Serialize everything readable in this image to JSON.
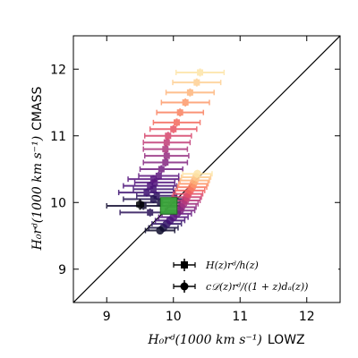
{
  "chart_data": {
    "type": "scatter",
    "title": "",
    "xlabel_math": "H₀rᵈ(1000 km s⁻¹)",
    "xlabel_suffix": "LOWZ",
    "ylabel_math": "H₀rᵈ(1000 km s⁻¹)",
    "ylabel_suffix": "CMASS",
    "xlim": [
      8.5,
      12.5
    ],
    "ylim": [
      8.5,
      12.5
    ],
    "xticks": [
      "9",
      "10",
      "11",
      "12"
    ],
    "yticks": [
      "9",
      "10",
      "11",
      "12"
    ],
    "grid": false,
    "diagonal": true,
    "colormap_note": "points colored from dark purple to light yellow",
    "series": [
      {
        "name": "H(z)r_d/h(z)",
        "marker": "square",
        "points": [
          {
            "x": 9.8,
            "y": 10.0,
            "xerr": 0.3,
            "yerr": 0.06,
            "color": "#1c1044"
          },
          {
            "x": 9.75,
            "y": 10.1,
            "xerr": 0.3,
            "yerr": 0.06,
            "color": "#2d1160"
          },
          {
            "x": 9.7,
            "y": 10.2,
            "xerr": 0.3,
            "yerr": 0.06,
            "color": "#3d0f6e"
          },
          {
            "x": 9.72,
            "y": 10.3,
            "xerr": 0.3,
            "yerr": 0.06,
            "color": "#51127c"
          },
          {
            "x": 9.78,
            "y": 10.4,
            "xerr": 0.3,
            "yerr": 0.06,
            "color": "#5f187f"
          },
          {
            "x": 9.82,
            "y": 10.5,
            "xerr": 0.32,
            "yerr": 0.06,
            "color": "#721f81"
          },
          {
            "x": 9.88,
            "y": 10.6,
            "xerr": 0.33,
            "yerr": 0.06,
            "color": "#832681"
          },
          {
            "x": 9.9,
            "y": 10.7,
            "xerr": 0.33,
            "yerr": 0.06,
            "color": "#952c80"
          },
          {
            "x": 9.88,
            "y": 10.8,
            "xerr": 0.33,
            "yerr": 0.06,
            "color": "#ab337c"
          },
          {
            "x": 9.9,
            "y": 10.9,
            "xerr": 0.35,
            "yerr": 0.06,
            "color": "#c03a76"
          },
          {
            "x": 9.92,
            "y": 11.0,
            "xerr": 0.35,
            "yerr": 0.06,
            "color": "#d6456c"
          },
          {
            "x": 10.0,
            "y": 11.1,
            "xerr": 0.35,
            "yerr": 0.06,
            "color": "#e85362"
          },
          {
            "x": 10.05,
            "y": 11.2,
            "xerr": 0.35,
            "yerr": 0.06,
            "color": "#f4695c"
          },
          {
            "x": 10.1,
            "y": 11.35,
            "xerr": 0.35,
            "yerr": 0.06,
            "color": "#fa815f"
          },
          {
            "x": 10.18,
            "y": 11.5,
            "xerr": 0.36,
            "yerr": 0.06,
            "color": "#fd9a6a"
          },
          {
            "x": 10.25,
            "y": 11.65,
            "xerr": 0.36,
            "yerr": 0.06,
            "color": "#feb47b"
          },
          {
            "x": 10.35,
            "y": 11.8,
            "xerr": 0.36,
            "yerr": 0.06,
            "color": "#fecf92"
          },
          {
            "x": 10.4,
            "y": 11.95,
            "xerr": 0.36,
            "yerr": 0.06,
            "color": "#fde4a7"
          },
          {
            "x": 9.55,
            "y": 9.95,
            "xerr": 0.55,
            "yerr": 0.06,
            "color": "#120d31"
          },
          {
            "x": 9.7,
            "y": 10.05,
            "xerr": 0.45,
            "yerr": 0.06,
            "color": "#221150"
          },
          {
            "x": 9.65,
            "y": 9.85,
            "xerr": 0.45,
            "yerr": 0.06,
            "color": "#2a1158"
          },
          {
            "x": 9.6,
            "y": 10.15,
            "xerr": 0.42,
            "yerr": 0.06,
            "color": "#3b0f70"
          },
          {
            "x": 9.65,
            "y": 10.25,
            "xerr": 0.4,
            "yerr": 0.06,
            "color": "#4a1079"
          },
          {
            "x": 9.7,
            "y": 10.35,
            "xerr": 0.38,
            "yerr": 0.06,
            "color": "#58157e"
          }
        ]
      },
      {
        "name": "cD(z)r_d/((1+z)d_A(z))",
        "marker": "circle",
        "points": [
          {
            "x": 9.5,
            "y": 9.97,
            "xerr": 0.05,
            "yerr": 0.08,
            "color": "#000004"
          },
          {
            "x": 9.85,
            "y": 9.62,
            "xerr": 0.22,
            "yerr": 0.06,
            "color": "#1b1044"
          },
          {
            "x": 9.9,
            "y": 9.68,
            "xerr": 0.22,
            "yerr": 0.06,
            "color": "#2e1163"
          },
          {
            "x": 9.95,
            "y": 9.73,
            "xerr": 0.22,
            "yerr": 0.06,
            "color": "#3f0f72"
          },
          {
            "x": 10.0,
            "y": 9.78,
            "xerr": 0.22,
            "yerr": 0.06,
            "color": "#51127c"
          },
          {
            "x": 10.05,
            "y": 9.83,
            "xerr": 0.22,
            "yerr": 0.06,
            "color": "#641a80"
          },
          {
            "x": 10.1,
            "y": 9.88,
            "xerr": 0.22,
            "yerr": 0.06,
            "color": "#782281"
          },
          {
            "x": 10.12,
            "y": 9.93,
            "xerr": 0.22,
            "yerr": 0.06,
            "color": "#8c2981"
          },
          {
            "x": 10.15,
            "y": 9.98,
            "xerr": 0.22,
            "yerr": 0.06,
            "color": "#a1307e"
          },
          {
            "x": 10.18,
            "y": 10.03,
            "xerr": 0.22,
            "yerr": 0.06,
            "color": "#b73779"
          },
          {
            "x": 10.2,
            "y": 10.08,
            "xerr": 0.22,
            "yerr": 0.06,
            "color": "#cd4071"
          },
          {
            "x": 10.22,
            "y": 10.13,
            "xerr": 0.22,
            "yerr": 0.06,
            "color": "#e24d66"
          },
          {
            "x": 10.25,
            "y": 10.18,
            "xerr": 0.22,
            "yerr": 0.06,
            "color": "#f1605d"
          },
          {
            "x": 10.28,
            "y": 10.23,
            "xerr": 0.22,
            "yerr": 0.06,
            "color": "#f9795d"
          },
          {
            "x": 10.3,
            "y": 10.28,
            "xerr": 0.22,
            "yerr": 0.06,
            "color": "#fd9567"
          },
          {
            "x": 10.32,
            "y": 10.33,
            "xerr": 0.22,
            "yerr": 0.06,
            "color": "#feb078"
          },
          {
            "x": 10.34,
            "y": 10.38,
            "xerr": 0.22,
            "yerr": 0.06,
            "color": "#fecb8e"
          },
          {
            "x": 10.36,
            "y": 10.43,
            "xerr": 0.22,
            "yerr": 0.06,
            "color": "#fde4a6"
          },
          {
            "x": 9.8,
            "y": 9.58,
            "xerr": 0.22,
            "yerr": 0.06,
            "color": "#0d0a2b"
          }
        ]
      }
    ],
    "highlight": {
      "x": 9.93,
      "y": 9.95,
      "size": 0.25,
      "color": "#3aa63a"
    },
    "legend": {
      "position": "lower-right",
      "entries": [
        {
          "marker": "square",
          "label": "H(z)rᵈ/h(z)"
        },
        {
          "marker": "circle",
          "label": "c𝒟(z)rᵈ/((1 + z)dₐ(z))"
        }
      ]
    }
  }
}
